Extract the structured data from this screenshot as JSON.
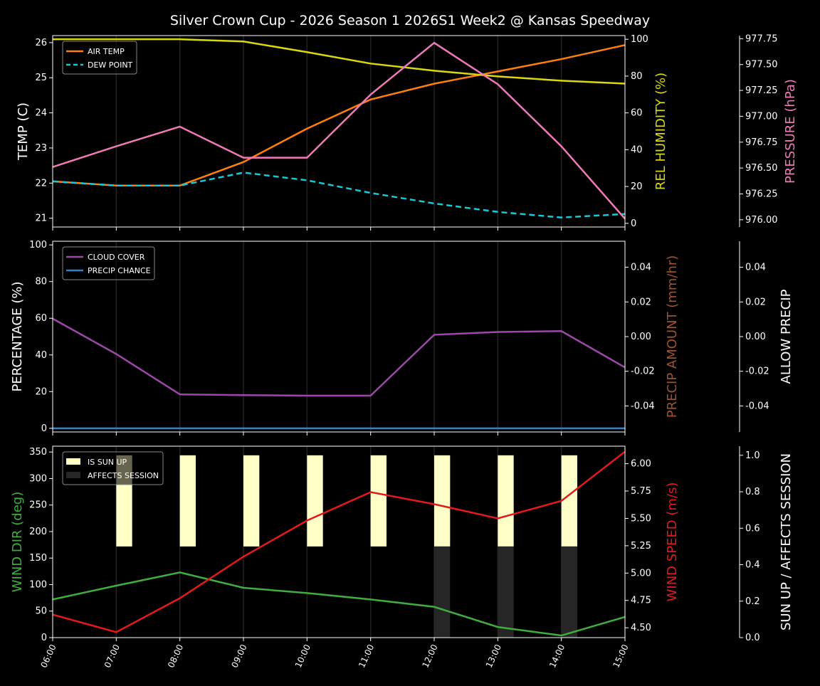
{
  "chart_data": [
    {
      "type": "line",
      "title": "Silver Crown Cup - 2026 Season 1 2026S1 Week2 @ Kansas Speedway",
      "x": [
        "06:00",
        "07:00",
        "08:00",
        "09:00",
        "10:00",
        "11:00",
        "12:00",
        "13:00",
        "14:00",
        "15:00"
      ],
      "ylabel": "TEMP (C)",
      "ylim": [
        20.75,
        26.2
      ],
      "yticks": [
        "21",
        "22",
        "23",
        "24",
        "25",
        "26"
      ],
      "y2label": "REL HUMIDITY (%)",
      "y2lim": [
        -2,
        102
      ],
      "y2ticks": [
        "0",
        "20",
        "40",
        "60",
        "80",
        "100"
      ],
      "y3label": "PRESSURE (hPa)",
      "y3lim": [
        975.93,
        977.78
      ],
      "y3ticks": [
        "976.00",
        "976.25",
        "976.50",
        "976.75",
        "977.00",
        "977.25",
        "977.50",
        "977.75"
      ],
      "legend": "top-left",
      "series": [
        {
          "name": "AIR TEMP",
          "axis": "y",
          "color": "#ff7f0e",
          "dashed": false,
          "values": [
            22.05,
            21.93,
            21.93,
            22.6,
            23.55,
            24.38,
            24.83,
            25.18,
            25.53,
            25.93
          ]
        },
        {
          "name": "DEW POINT",
          "axis": "y",
          "color": "#17c9d6",
          "dashed": true,
          "values": [
            22.05,
            21.93,
            21.93,
            22.3,
            22.08,
            21.72,
            21.42,
            21.18,
            21.02,
            21.12
          ]
        },
        {
          "axis": "y2",
          "color": "#d8d80a",
          "values": [
            100,
            100,
            100,
            98.8,
            93,
            86.8,
            82.9,
            79.8,
            77.5,
            75.9
          ]
        },
        {
          "axis": "y3",
          "color": "#f07ab8",
          "values": [
            976.51,
            976.71,
            976.9,
            976.6,
            976.6,
            977.21,
            977.71,
            977.31,
            976.71,
            976.01
          ]
        }
      ]
    },
    {
      "type": "line",
      "x": [
        "06:00",
        "07:00",
        "08:00",
        "09:00",
        "10:00",
        "11:00",
        "12:00",
        "13:00",
        "14:00",
        "15:00"
      ],
      "ylabel": "PERCENTAGE (%)",
      "ylim": [
        -2,
        102
      ],
      "yticks": [
        "0",
        "20",
        "40",
        "60",
        "80",
        "100"
      ],
      "y2label": "PRECIP AMOUNT (mm/hr)",
      "y2lim": [
        -0.055,
        0.055
      ],
      "y2ticks": [
        "-0.04",
        "-0.02",
        "0.00",
        "0.02",
        "0.04"
      ],
      "y3label": "ALLOW PRECIP",
      "y3lim": [
        -0.055,
        0.055
      ],
      "y3ticks": [
        "-0.04",
        "-0.02",
        "0.00",
        "0.02",
        "0.04"
      ],
      "legend": "top-left",
      "series": [
        {
          "name": "CLOUD COVER",
          "axis": "y",
          "color": "#9b48a8",
          "values": [
            59.8,
            40.5,
            18.5,
            18.1,
            17.8,
            17.8,
            51,
            52.5,
            53,
            33.2
          ]
        },
        {
          "name": "PRECIP CHANCE",
          "axis": "y",
          "color": "#3d7fc4",
          "values": [
            0,
            0,
            0,
            0,
            0,
            0,
            0,
            0,
            0,
            0
          ]
        }
      ]
    },
    {
      "type": "line",
      "x": [
        "06:00",
        "07:00",
        "08:00",
        "09:00",
        "10:00",
        "11:00",
        "12:00",
        "13:00",
        "14:00",
        "15:00"
      ],
      "ylabel": "WIND DIR (deg)",
      "ylim": [
        0,
        361
      ],
      "yticks": [
        "0",
        "50",
        "100",
        "150",
        "200",
        "250",
        "300",
        "350"
      ],
      "y2label": "WIND SPEED (m/s)",
      "y2lim": [
        4.41,
        6.16
      ],
      "y2ticks": [
        "4.50",
        "4.75",
        "5.00",
        "5.25",
        "5.50",
        "5.75",
        "6.00"
      ],
      "y3label": "SUN UP / AFFECTS SESSION",
      "y3lim": [
        0,
        1.05
      ],
      "y3ticks": [
        "0.0",
        "0.2",
        "0.4",
        "0.6",
        "0.8",
        "1.0"
      ],
      "legend": "top-left",
      "series": [
        {
          "axis": "y",
          "color": "#3fae3f",
          "values": [
            72,
            98,
            123,
            94,
            84,
            72,
            58,
            20,
            4,
            39
          ]
        },
        {
          "axis": "y2",
          "color": "#e3191c",
          "values": [
            4.62,
            4.46,
            4.77,
            5.15,
            5.48,
            5.74,
            5.63,
            5.5,
            5.66,
            6.11
          ]
        }
      ],
      "bars": [
        {
          "name": "IS SUN UP",
          "color": "#ffffc8",
          "values": [
            0,
            1,
            1,
            1,
            1,
            1,
            1,
            1,
            1,
            0
          ]
        },
        {
          "name": "AFFECTS SESSION",
          "color": "#262626",
          "values": [
            0,
            0,
            0,
            0,
            0,
            0,
            1,
            1,
            1,
            0
          ]
        }
      ]
    }
  ]
}
